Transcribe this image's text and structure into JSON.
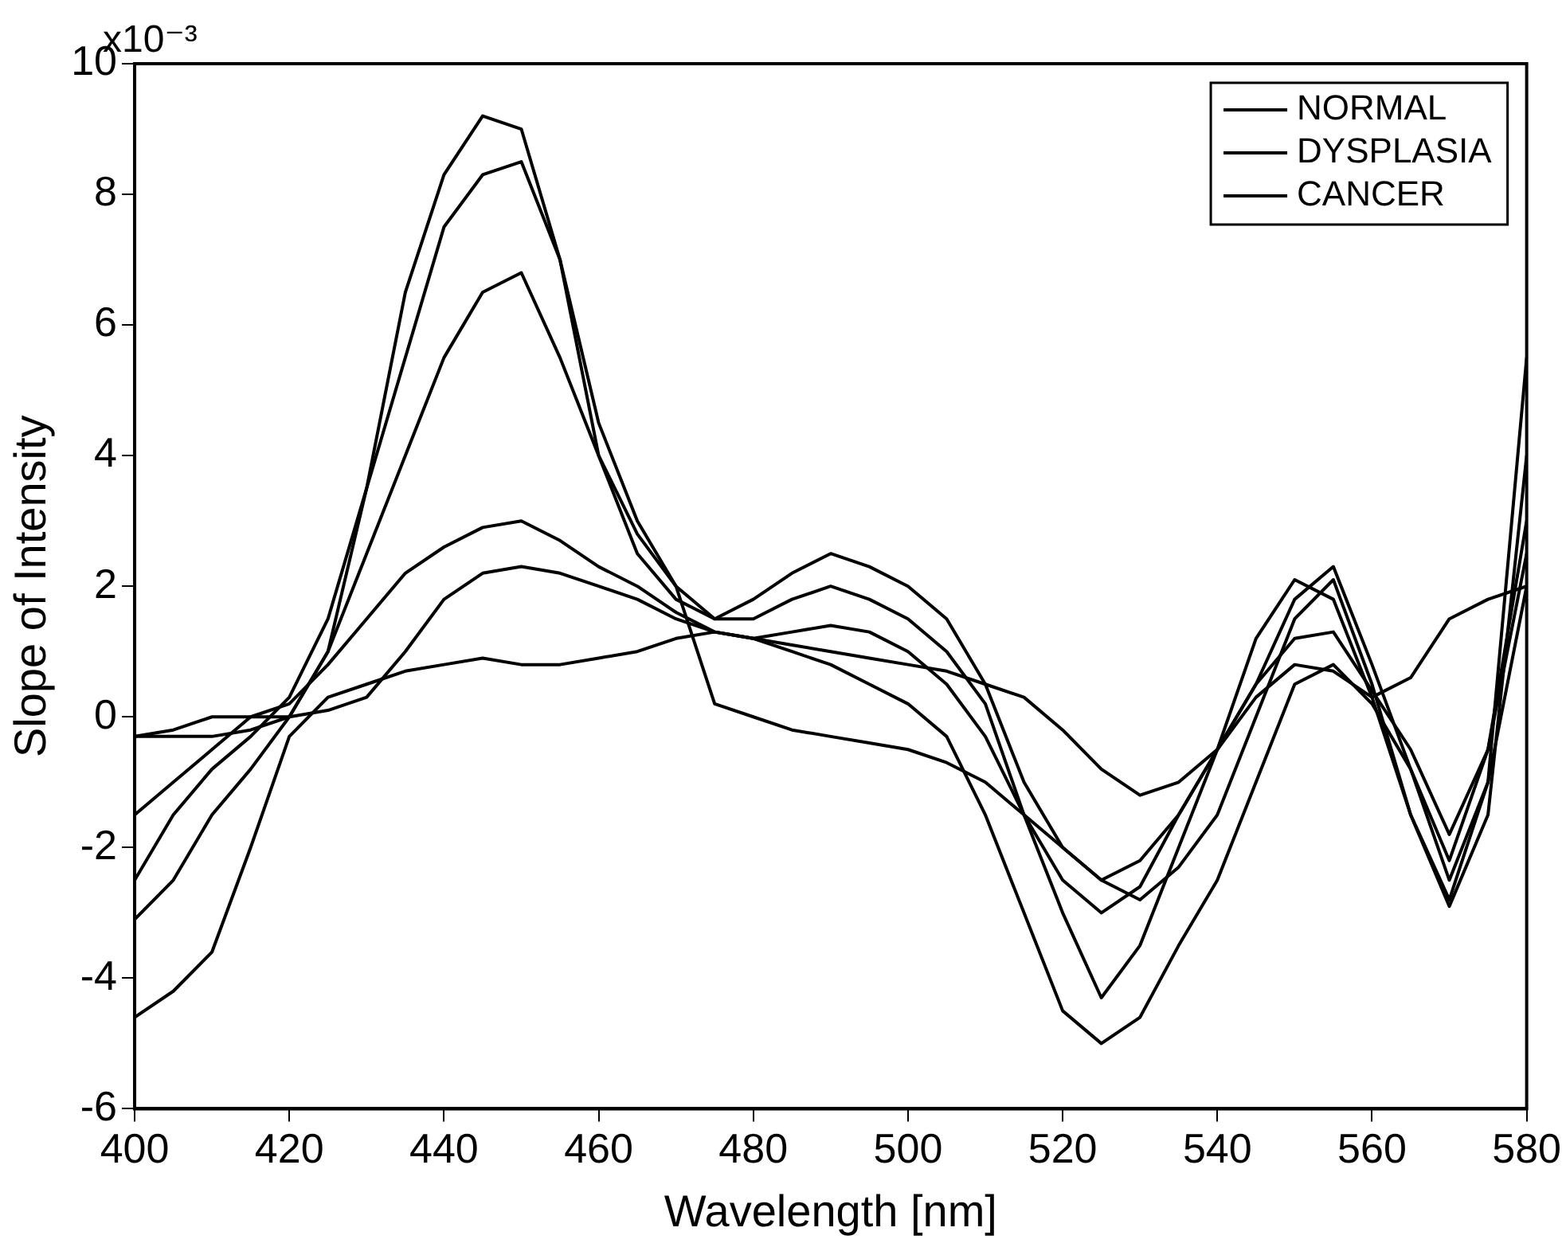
{
  "chart_data": {
    "type": "line",
    "xlabel": "Wavelength [nm]",
    "ylabel": "Slope of Intensity",
    "annotations": [
      "x10⁻³"
    ],
    "x": [
      400,
      405,
      410,
      415,
      420,
      425,
      430,
      435,
      440,
      445,
      450,
      455,
      460,
      465,
      470,
      475,
      480,
      485,
      490,
      495,
      500,
      505,
      510,
      515,
      520,
      525,
      530,
      535,
      540,
      545,
      550,
      555,
      560,
      565,
      570,
      575,
      580
    ],
    "xlim": [
      400,
      580
    ],
    "xticks": [
      400,
      420,
      440,
      460,
      480,
      500,
      520,
      540,
      560,
      580
    ],
    "ylim": [
      -6,
      10
    ],
    "yticks": [
      -6,
      -4,
      -2,
      0,
      2,
      4,
      6,
      8,
      10
    ],
    "grid": false,
    "legend": "top right",
    "marker": "none",
    "line_style": "solid",
    "series": [
      {
        "name": "NORMAL",
        "color": "#000000",
        "values": [
          -1.5,
          -1,
          -0.5,
          0,
          0.2,
          0.8,
          1.5,
          2.2,
          2.6,
          2.9,
          3,
          2.7,
          2.3,
          2,
          1.6,
          1.3,
          1.2,
          1.3,
          1.4,
          1.3,
          1,
          0.5,
          -0.3,
          -1.5,
          -2.5,
          -3,
          -2.6,
          -1.5,
          -0.5,
          0.5,
          1.2,
          1.3,
          0.4,
          -0.5,
          -1.8,
          -0.5,
          2.5
        ]
      },
      {
        "name": "DYSPLASIA",
        "color": "#000000",
        "values": [
          -3.1,
          -2.5,
          -1.5,
          -0.8,
          0,
          1,
          2.5,
          4,
          5.5,
          6.5,
          6.8,
          5.5,
          4,
          2.8,
          2,
          0.2,
          0,
          -0.2,
          -0.3,
          -0.4,
          -0.5,
          -0.7,
          -1,
          -1.5,
          -2,
          -2.5,
          -2.8,
          -2.3,
          -1.5,
          0,
          1.5,
          2.1,
          0.5,
          -1.5,
          -2.8,
          -1,
          2
        ]
      },
      {
        "name": "CANCER",
        "color": "#000000",
        "values": [
          -2.5,
          -1.5,
          -0.8,
          -0.3,
          0.3,
          1.5,
          3.5,
          5.5,
          7.5,
          8.3,
          8.5,
          7,
          4.5,
          3,
          2,
          1.5,
          1.5,
          1.8,
          2,
          1.8,
          1.5,
          1,
          0.2,
          -1.5,
          -3,
          -4.3,
          -3.5,
          -2,
          -0.5,
          1.2,
          2.1,
          1.8,
          0.3,
          -1.5,
          -2.9,
          -1.5,
          4
        ]
      },
      {
        "color": "#000000",
        "values": [
          -0.3,
          -0.2,
          0,
          0,
          0,
          1,
          3.5,
          6.5,
          8.3,
          9.2,
          9,
          7,
          4,
          2.5,
          1.8,
          1.5,
          1.8,
          2.2,
          2.5,
          2.3,
          2,
          1.5,
          0.5,
          -1,
          -2,
          -2.5,
          -2.2,
          -1.5,
          -0.5,
          0.5,
          1.8,
          2.3,
          0.8,
          -0.8,
          -2.5,
          -1,
          5.5
        ]
      },
      {
        "color": "#000000",
        "values": [
          -4.6,
          -4.2,
          -3.6,
          -2,
          -0.3,
          0.3,
          0.5,
          0.7,
          0.8,
          0.9,
          0.8,
          0.8,
          0.9,
          1,
          1.2,
          1.3,
          1.2,
          1,
          0.8,
          0.5,
          0.2,
          -0.3,
          -1.5,
          -3,
          -4.5,
          -5,
          -4.6,
          -3.5,
          -2.5,
          -1,
          0.5,
          0.8,
          0.2,
          -0.8,
          -2.2,
          -0.5,
          3
        ]
      },
      {
        "color": "#000000",
        "values": [
          -0.3,
          -0.3,
          -0.3,
          -0.2,
          0,
          0.1,
          0.3,
          1,
          1.8,
          2.2,
          2.3,
          2.2,
          2,
          1.8,
          1.5,
          1.3,
          1.2,
          1.1,
          1,
          0.9,
          0.8,
          0.7,
          0.5,
          0.3,
          -0.2,
          -0.8,
          -1.2,
          -1,
          -0.5,
          0.3,
          0.8,
          0.7,
          0.3,
          0.6,
          1.5,
          1.8,
          2
        ]
      }
    ]
  }
}
